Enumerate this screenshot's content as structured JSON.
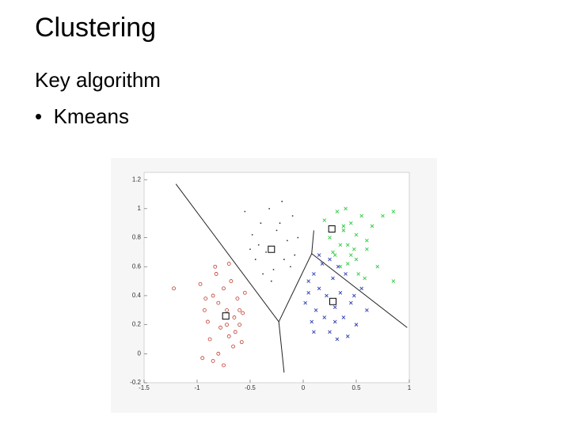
{
  "header": {
    "title": "Clustering"
  },
  "body": {
    "text": "Key algorithm",
    "bullets": [
      "Kmeans"
    ]
  },
  "chart_data": {
    "type": "scatter",
    "xlim": [
      -1.5,
      1
    ],
    "ylim": [
      -0.2,
      1.25
    ],
    "xticks": [
      -1.5,
      -1,
      -0.5,
      0,
      0.5,
      1
    ],
    "yticks": [
      -0.2,
      0,
      0.2,
      0.4,
      0.6,
      0.8,
      1,
      1.2
    ],
    "series": [
      {
        "color": "#c0392b",
        "marker": "circle",
        "x": [
          -1.22,
          -0.97,
          -0.93,
          -0.9,
          -0.85,
          -0.82,
          -0.8,
          -0.78,
          -0.75,
          -0.72,
          -0.7,
          -0.68,
          -0.65,
          -0.62,
          -0.6,
          -0.58,
          -0.55,
          -0.88,
          -0.95,
          -0.83,
          -0.7,
          -0.66,
          -0.6,
          -0.75,
          -0.8,
          -0.92,
          -0.64,
          -0.57,
          -0.85,
          -0.72
        ],
        "y": [
          0.45,
          0.48,
          0.3,
          0.22,
          0.4,
          0.55,
          0.35,
          0.18,
          0.45,
          0.3,
          0.12,
          0.5,
          0.25,
          0.38,
          0.2,
          0.08,
          0.42,
          0.1,
          -0.03,
          0.6,
          0.62,
          0.05,
          0.3,
          -0.08,
          0.0,
          0.38,
          0.15,
          0.28,
          -0.05,
          0.2
        ]
      },
      {
        "color": "#333333",
        "marker": "dot",
        "x": [
          -0.55,
          -0.48,
          -0.45,
          -0.4,
          -0.35,
          -0.32,
          -0.28,
          -0.25,
          -0.2,
          -0.18,
          -0.15,
          -0.1,
          -0.05,
          -0.42,
          -0.38,
          -0.22,
          -0.12,
          -0.3,
          -0.5,
          -0.08
        ],
        "y": [
          0.98,
          0.82,
          0.65,
          0.9,
          0.7,
          1.0,
          0.58,
          0.85,
          1.05,
          0.65,
          0.78,
          0.95,
          0.8,
          0.75,
          0.55,
          0.9,
          0.6,
          0.5,
          0.72,
          0.68
        ]
      },
      {
        "color": "#2a3ab0",
        "marker": "x",
        "x": [
          0.02,
          0.05,
          0.08,
          0.1,
          0.12,
          0.15,
          0.18,
          0.2,
          0.22,
          0.25,
          0.28,
          0.3,
          0.32,
          0.35,
          0.38,
          0.4,
          0.45,
          0.5,
          0.55,
          0.6,
          0.1,
          0.25,
          0.33,
          0.42,
          0.48,
          0.15,
          0.05,
          0.3
        ],
        "y": [
          0.35,
          0.42,
          0.22,
          0.55,
          0.3,
          0.45,
          0.62,
          0.25,
          0.4,
          0.15,
          0.52,
          0.32,
          0.1,
          0.42,
          0.25,
          0.55,
          0.35,
          0.2,
          0.45,
          0.3,
          0.15,
          0.65,
          0.6,
          0.12,
          0.4,
          0.68,
          0.5,
          0.22
        ]
      },
      {
        "color": "#2ecc40",
        "marker": "x",
        "x": [
          0.2,
          0.25,
          0.3,
          0.32,
          0.35,
          0.38,
          0.4,
          0.42,
          0.45,
          0.48,
          0.5,
          0.52,
          0.55,
          0.6,
          0.65,
          0.7,
          0.75,
          0.85,
          0.35,
          0.42,
          0.28,
          0.5,
          0.58,
          0.38,
          0.45,
          0.85,
          0.6
        ],
        "y": [
          0.92,
          0.8,
          0.68,
          0.98,
          0.75,
          0.85,
          1.0,
          0.62,
          0.9,
          0.72,
          0.82,
          0.55,
          0.95,
          0.78,
          0.88,
          0.6,
          0.95,
          0.98,
          0.6,
          0.75,
          0.7,
          0.65,
          0.52,
          0.88,
          0.68,
          0.5,
          0.72
        ]
      },
      {
        "color": "#000000",
        "marker": "square",
        "x": [
          -0.3,
          0.27,
          0.28,
          -0.73
        ],
        "y": [
          0.72,
          0.86,
          0.36,
          0.26
        ]
      }
    ],
    "boundaries": [
      {
        "x": [
          -1.2,
          -0.23,
          0.08,
          0.98
        ],
        "y": [
          1.17,
          0.22,
          0.69,
          0.18
        ]
      },
      {
        "x": [
          -0.23,
          -0.18
        ],
        "y": [
          0.22,
          -0.13
        ]
      },
      {
        "x": [
          0.08,
          0.1
        ],
        "y": [
          0.69,
          0.85
        ]
      }
    ]
  }
}
